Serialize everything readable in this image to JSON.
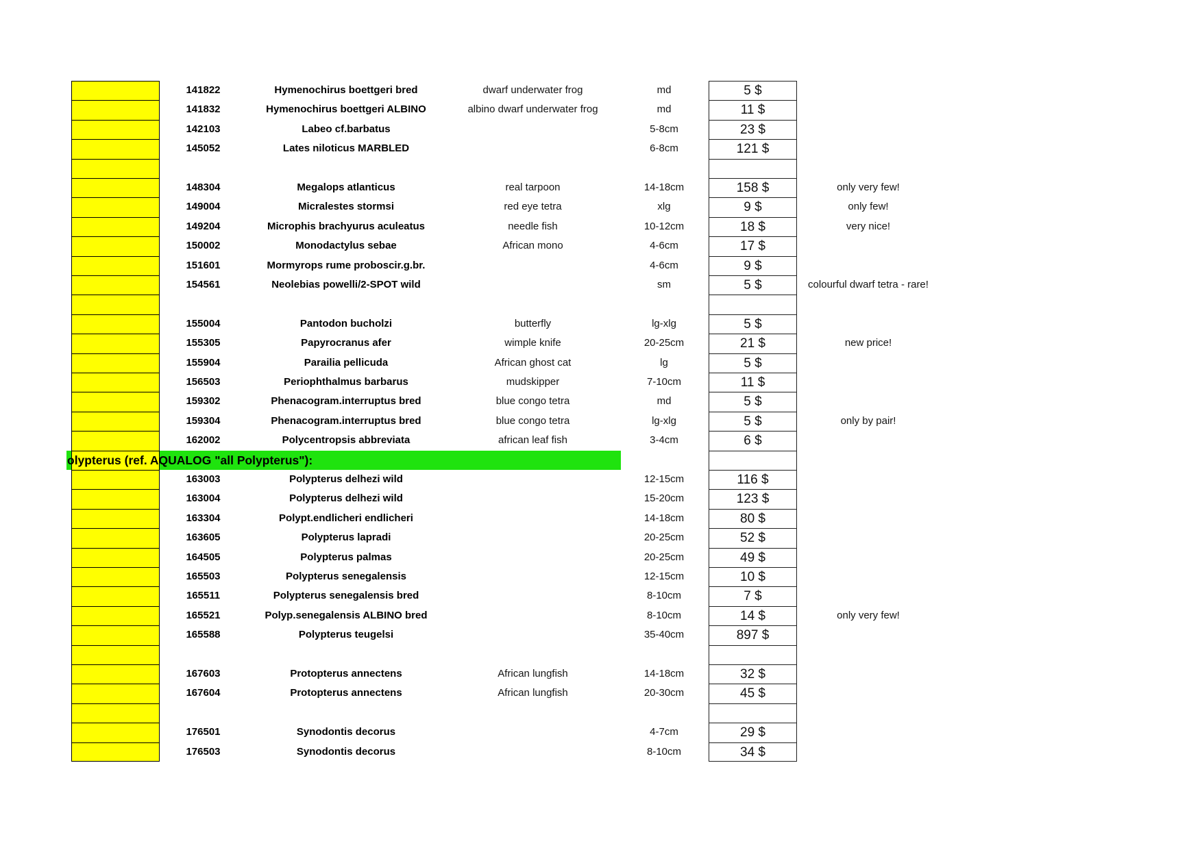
{
  "colors": {
    "highlight_yellow": "#ffff00",
    "section_green": "#1fe30e",
    "grid_line": "#000000",
    "price_box_line": "#1f1f1f"
  },
  "table": {
    "rows": [
      {
        "type": "item",
        "code": "141822",
        "species": "Hymenochirus boettgeri bred",
        "common": "dwarf underwater frog",
        "size": "md",
        "price": "5 $",
        "note": ""
      },
      {
        "type": "item",
        "code": "141832",
        "species": "Hymenochirus boettgeri ALBINO",
        "common": "albino dwarf underwater frog",
        "size": "md",
        "price": "11 $",
        "note": ""
      },
      {
        "type": "item",
        "code": "142103",
        "species": "Labeo cf.barbatus",
        "common": "",
        "size": "5-8cm",
        "price": "23 $",
        "note": ""
      },
      {
        "type": "item",
        "code": "145052",
        "species": "Lates niloticus MARBLED",
        "common": "",
        "size": "6-8cm",
        "price": "121 $",
        "note": ""
      },
      {
        "type": "empty"
      },
      {
        "type": "item",
        "code": "148304",
        "species": "Megalops atlanticus",
        "common": "real tarpoon",
        "size": "14-18cm",
        "price": "158 $",
        "note": "only very few!"
      },
      {
        "type": "item",
        "code": "149004",
        "species": "Micralestes stormsi",
        "common": "red eye tetra",
        "size": "xlg",
        "price": "9 $",
        "note": "only few!"
      },
      {
        "type": "item",
        "code": "149204",
        "species": "Microphis brachyurus aculeatus",
        "common": "needle fish",
        "size": "10-12cm",
        "price": "18 $",
        "note": "very nice!"
      },
      {
        "type": "item",
        "code": "150002",
        "species": "Monodactylus sebae",
        "common": "African mono",
        "size": "4-6cm",
        "price": "17 $",
        "note": ""
      },
      {
        "type": "item",
        "code": "151601",
        "species": "Mormyrops rume proboscir.g.br.",
        "common": "",
        "size": "4-6cm",
        "price": "9 $",
        "note": ""
      },
      {
        "type": "item",
        "code": "154561",
        "species": "Neolebias powelli/2-SPOT wild",
        "common": "",
        "size": "sm",
        "price": "5 $",
        "note": "colourful dwarf tetra - rare!"
      },
      {
        "type": "empty"
      },
      {
        "type": "item",
        "code": "155004",
        "species": "Pantodon bucholzi",
        "common": "butterfly",
        "size": "lg-xlg",
        "price": "5 $",
        "note": ""
      },
      {
        "type": "item",
        "code": "155305",
        "species": "Papyrocranus afer",
        "common": "wimple knife",
        "size": "20-25cm",
        "price": "21 $",
        "note": "new price!"
      },
      {
        "type": "item",
        "code": "155904",
        "species": "Parailia pellicuda",
        "common": "African ghost cat",
        "size": "lg",
        "price": "5 $",
        "note": ""
      },
      {
        "type": "item",
        "code": "156503",
        "species": "Periophthalmus barbarus",
        "common": "mudskipper",
        "size": "7-10cm",
        "price": "11 $",
        "note": ""
      },
      {
        "type": "item",
        "code": "159302",
        "species": "Phenacogram.interruptus bred",
        "common": "blue congo tetra",
        "size": "md",
        "price": "5 $",
        "note": ""
      },
      {
        "type": "item",
        "code": "159304",
        "species": "Phenacogram.interruptus bred",
        "common": "blue congo tetra",
        "size": "lg-xlg",
        "price": "5 $",
        "note": "only by pair!"
      },
      {
        "type": "item",
        "code": "162002",
        "species": "Polycentropsis abbreviata",
        "common": "african leaf fish",
        "size": "3-4cm",
        "price": "6 $",
        "note": ""
      },
      {
        "type": "section",
        "label": "olypterus (ref. AQUALOG \"all Polypterus\"):"
      },
      {
        "type": "item",
        "code": "163003",
        "species": "Polypterus delhezi wild",
        "common": "",
        "size": "12-15cm",
        "price": "116 $",
        "note": ""
      },
      {
        "type": "item",
        "code": "163004",
        "species": "Polypterus delhezi wild",
        "common": "",
        "size": "15-20cm",
        "price": "123 $",
        "note": ""
      },
      {
        "type": "item",
        "code": "163304",
        "species": "Polypt.endlicheri endlicheri",
        "common": "",
        "size": "14-18cm",
        "price": "80 $",
        "note": ""
      },
      {
        "type": "item",
        "code": "163605",
        "species": "Polypterus lapradi",
        "common": "",
        "size": "20-25cm",
        "price": "52 $",
        "note": ""
      },
      {
        "type": "item",
        "code": "164505",
        "species": "Polypterus palmas",
        "common": "",
        "size": "20-25cm",
        "price": "49 $",
        "note": ""
      },
      {
        "type": "item",
        "code": "165503",
        "species": "Polypterus senegalensis",
        "common": "",
        "size": "12-15cm",
        "price": "10 $",
        "note": ""
      },
      {
        "type": "item",
        "code": "165511",
        "species": "Polypterus senegalensis bred",
        "common": "",
        "size": "8-10cm",
        "price": "7 $",
        "note": ""
      },
      {
        "type": "item",
        "code": "165521",
        "species": "Polyp.senegalensis ALBINO bred",
        "common": "",
        "size": "8-10cm",
        "price": "14 $",
        "note": "only very few!"
      },
      {
        "type": "item",
        "code": "165588",
        "species": "Polypterus teugelsi",
        "common": "",
        "size": "35-40cm",
        "price": "897 $",
        "note": ""
      },
      {
        "type": "empty"
      },
      {
        "type": "item",
        "code": "167603",
        "species": "Protopterus annectens",
        "common": "African lungfish",
        "size": "14-18cm",
        "price": "32 $",
        "note": ""
      },
      {
        "type": "item",
        "code": "167604",
        "species": "Protopterus annectens",
        "common": "African lungfish",
        "size": "20-30cm",
        "price": "45 $",
        "note": ""
      },
      {
        "type": "empty"
      },
      {
        "type": "item",
        "code": "176501",
        "species": "Synodontis decorus",
        "common": "",
        "size": "4-7cm",
        "price": "29 $",
        "note": ""
      },
      {
        "type": "item",
        "code": "176503",
        "species": "Synodontis decorus",
        "common": "",
        "size": "8-10cm",
        "price": "34 $",
        "note": ""
      }
    ]
  }
}
